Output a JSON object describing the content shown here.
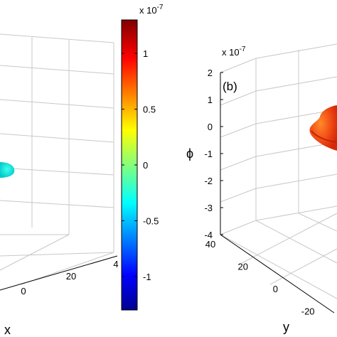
{
  "chart_data": [
    {
      "type": "surface",
      "panel": "a",
      "xlabel": "x",
      "x_ticks": [
        "0",
        "20",
        "4"
      ],
      "blob_color": "#00e0d8"
    },
    {
      "type": "surface",
      "panel": "b",
      "panel_label": "(b)",
      "zlabel": "ϕ",
      "z_scale": "x 10",
      "z_scale_exp": "-7",
      "z_ticks": [
        "2",
        "1",
        "0",
        "-1",
        "-2",
        "-3",
        "-4"
      ],
      "z_values": [
        2,
        1,
        0,
        -1,
        -2,
        -3,
        -4
      ],
      "ylabel": "y",
      "y_ticks": [
        "40",
        "20",
        "0",
        "-20"
      ],
      "y_values": [
        40,
        20,
        0,
        -20
      ],
      "blob_colors": [
        "#e82a10",
        "#ff7020"
      ]
    }
  ],
  "colorbar": {
    "scale": "x 10",
    "scale_exp": "-7",
    "min": -1.3,
    "max": 1.3,
    "ticks": [
      "1",
      "0.5",
      "0",
      "-0.5",
      "-1"
    ],
    "tick_values": [
      1,
      0.5,
      0,
      -0.5,
      -1
    ],
    "colormap": "jet",
    "stops": [
      "#00008f",
      "#0000ff",
      "#00ffff",
      "#ffff00",
      "#ff0000",
      "#800000"
    ]
  }
}
